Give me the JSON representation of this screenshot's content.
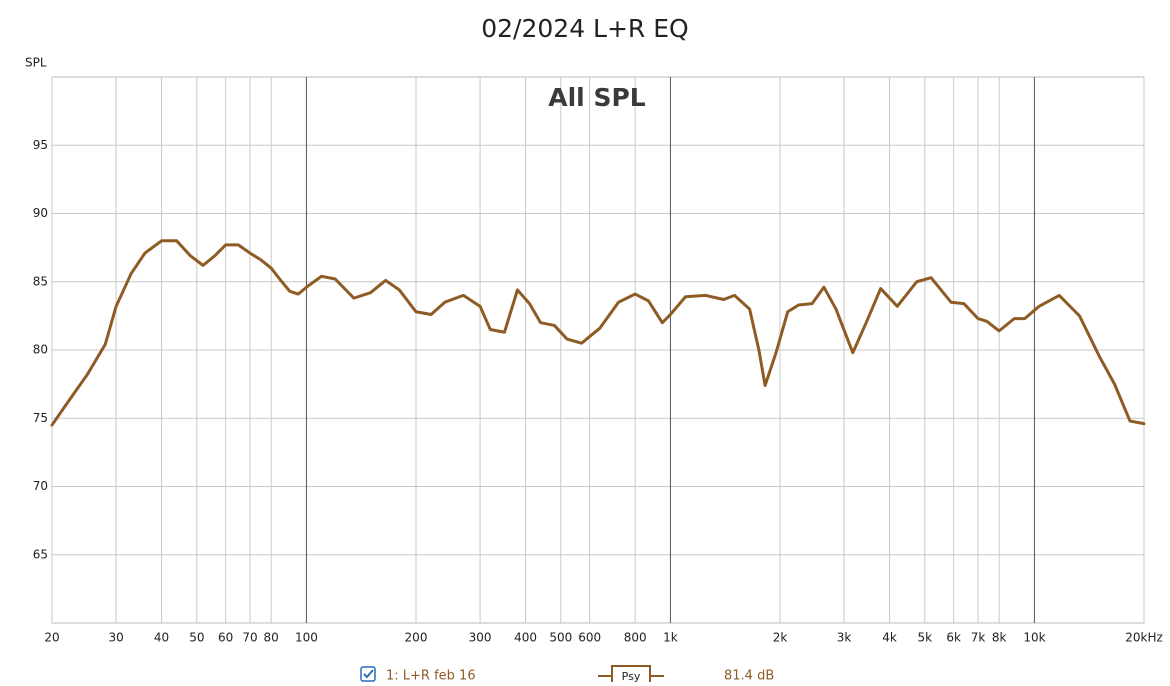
{
  "chart_data": {
    "type": "line",
    "title": "02/2024 L+R EQ",
    "y_label": "SPL",
    "annotation": "All SPL",
    "x_scale": "log",
    "grid": true,
    "xlim": [
      20,
      20000
    ],
    "ylim": [
      60,
      100
    ],
    "xticks": [
      20,
      30,
      40,
      50,
      60,
      70,
      80,
      100,
      200,
      300,
      400,
      500,
      600,
      800,
      {
        "value": 1000,
        "label": "1k"
      },
      {
        "value": 2000,
        "label": "2k"
      },
      {
        "value": 3000,
        "label": "3k"
      },
      {
        "value": 4000,
        "label": "4k"
      },
      {
        "value": 5000,
        "label": "5k"
      },
      {
        "value": 6000,
        "label": "6k"
      },
      {
        "value": 7000,
        "label": "7k"
      },
      {
        "value": 8000,
        "label": "8k"
      },
      {
        "value": 10000,
        "label": "10k"
      },
      {
        "value": 20000,
        "label": "20kHz"
      }
    ],
    "yticks": [
      65,
      70,
      75,
      80,
      85,
      90,
      95
    ],
    "x": [
      20,
      22,
      25,
      28,
      30,
      33,
      36,
      40,
      44,
      48,
      52,
      56,
      60,
      65,
      70,
      75,
      80,
      85,
      90,
      95,
      100,
      110,
      120,
      135,
      150,
      165,
      180,
      200,
      220,
      240,
      270,
      300,
      320,
      350,
      380,
      410,
      440,
      480,
      520,
      570,
      640,
      720,
      800,
      870,
      950,
      1000,
      1100,
      1250,
      1400,
      1500,
      1650,
      1750,
      1820,
      1950,
      2100,
      2250,
      2450,
      2640,
      2850,
      3170,
      3450,
      3780,
      4200,
      4750,
      5200,
      5900,
      6400,
      7000,
      7400,
      8000,
      8800,
      9400,
      10300,
      11700,
      13300,
      15100,
      16600,
      18300,
      20000
    ],
    "series": [
      {
        "name": "1: L+R feb 16",
        "color": "#8f5b24",
        "values": [
          74.5,
          76.1,
          78.2,
          80.4,
          83.2,
          85.6,
          87.1,
          88.0,
          88.0,
          86.9,
          86.2,
          86.9,
          87.7,
          87.7,
          87.1,
          86.6,
          86.0,
          85.1,
          84.3,
          84.1,
          84.6,
          85.4,
          85.2,
          83.8,
          84.2,
          85.1,
          84.4,
          82.8,
          82.6,
          83.5,
          84.0,
          83.2,
          81.5,
          81.3,
          84.4,
          83.4,
          82.0,
          81.8,
          80.8,
          80.5,
          81.6,
          83.5,
          84.1,
          83.6,
          82.0,
          82.6,
          83.9,
          84.0,
          83.7,
          84.0,
          83.0,
          80.0,
          77.4,
          79.8,
          82.8,
          83.3,
          83.4,
          84.6,
          83.0,
          79.8,
          82.0,
          84.5,
          83.2,
          85.0,
          85.3,
          83.5,
          83.4,
          82.3,
          82.1,
          81.4,
          82.3,
          82.3,
          83.2,
          84.0,
          82.5,
          79.5,
          77.5,
          74.8,
          74.6
        ]
      }
    ],
    "legend_smoothing": "Psy",
    "legend_readout": "81.4 dB"
  }
}
